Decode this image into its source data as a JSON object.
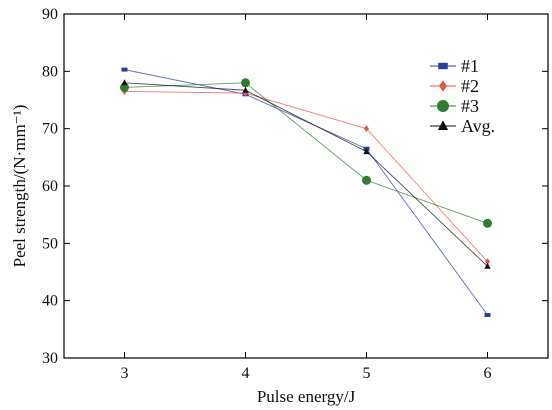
{
  "chart_data": {
    "type": "line",
    "xlabel": "Pulse energy/J",
    "ylabel": "Peel strength/(N·mm⁻¹)",
    "x": [
      3,
      4,
      5,
      6
    ],
    "xlim": [
      2.5,
      6.5
    ],
    "ylim": [
      30,
      90
    ],
    "xticks": [
      "3",
      "4",
      "5",
      "6"
    ],
    "yticks": [
      "30",
      "40",
      "50",
      "60",
      "70",
      "80",
      "90"
    ],
    "grid": false,
    "legend_position": "top-right",
    "series": [
      {
        "name": "#1",
        "values": [
          80.3,
          76.0,
          66.5,
          37.5
        ],
        "color": "#2a3f9a",
        "marker": "square"
      },
      {
        "name": "#2",
        "values": [
          76.5,
          76.2,
          70.0,
          46.8
        ],
        "color": "#e05a4a",
        "marker": "diamond"
      },
      {
        "name": "#3",
        "values": [
          77.2,
          78.0,
          61.0,
          53.5
        ],
        "color": "#2e7d32",
        "marker": "circle"
      },
      {
        "name": "Avg.",
        "values": [
          78.0,
          76.7,
          66.0,
          46.0
        ],
        "color": "#111111",
        "marker": "triangle"
      }
    ]
  }
}
